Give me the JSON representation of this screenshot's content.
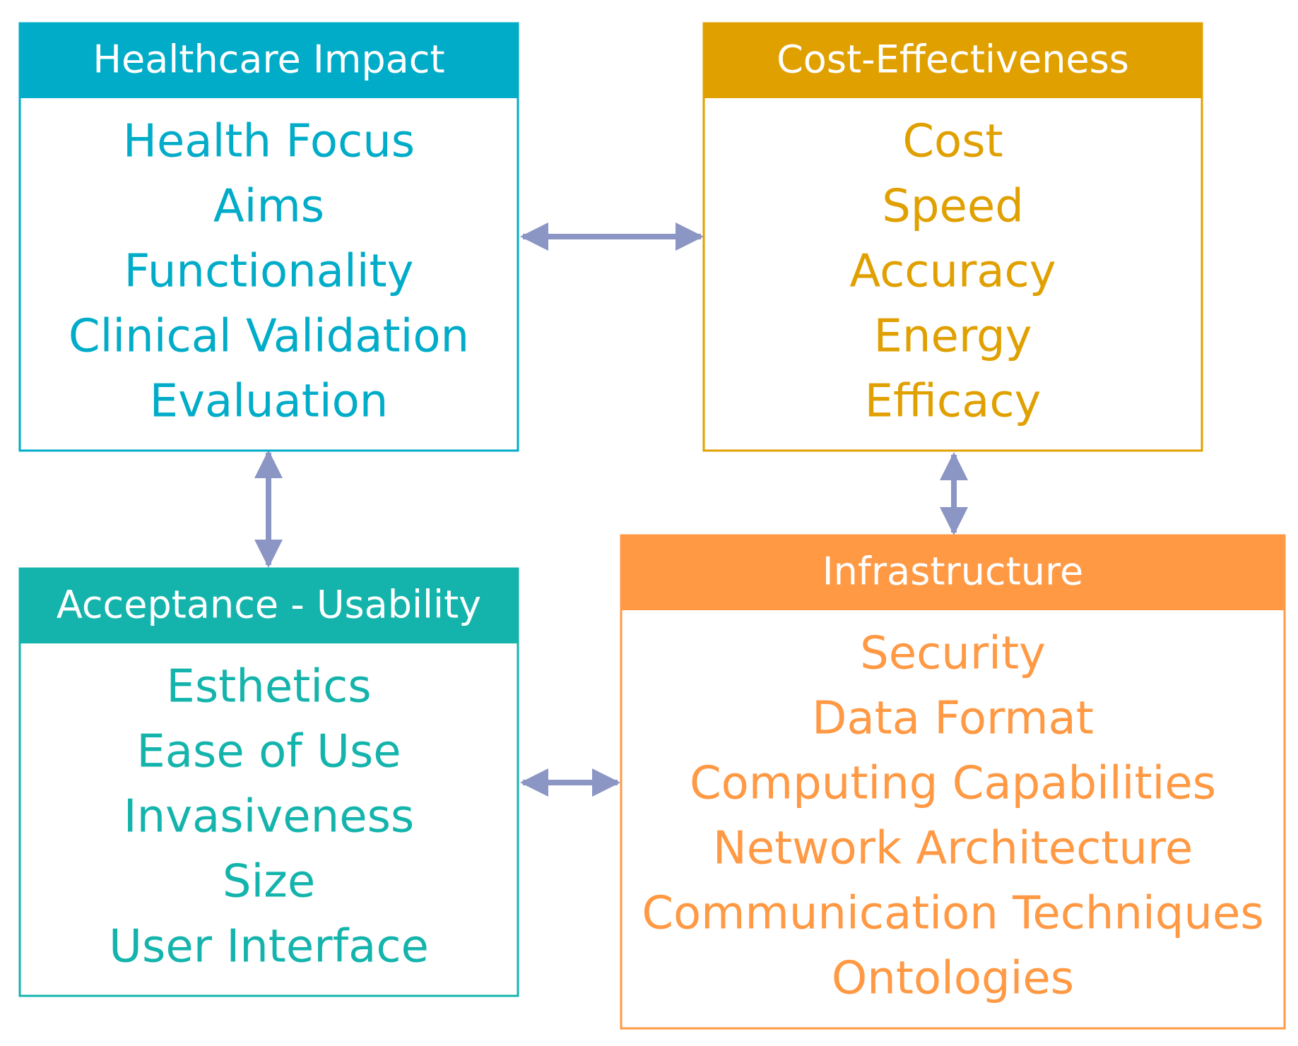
{
  "boxes": [
    {
      "title": "Healthcare Impact",
      "items": [
        "Health Focus",
        "Aims",
        "Functionality",
        "Clinical Validation",
        "Evaluation"
      ]
    },
    {
      "title": "Cost-Effectiveness",
      "items": [
        "Cost",
        "Speed",
        "Accuracy",
        "Energy",
        "Efficacy"
      ]
    },
    {
      "title": "Acceptance - Usability",
      "items": [
        "Esthetics",
        "Ease of Use",
        "Invasiveness",
        "Size",
        "User Interface"
      ]
    },
    {
      "title": "Infrastructure",
      "items": [
        "Security",
        "Data Format",
        "Computing Capabilities",
        "Network Architecture",
        "Communication Techniques",
        "Ontologies"
      ]
    }
  ]
}
